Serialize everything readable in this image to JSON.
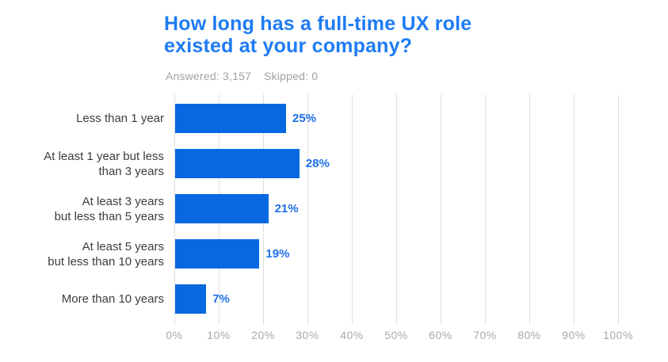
{
  "header": {
    "title_lines": [
      "How long has a full-time UX role",
      "existed at your company?"
    ],
    "answered_label": "Answered: 3,157",
    "skipped_label": "Skipped: 0"
  },
  "colors": {
    "title": "#1E7BF3",
    "bar": "#0768E1",
    "value_label": "#1E6FE8",
    "category_label": "#3D3D3D",
    "subtitle": "#9EA2A8",
    "tick_label": "#A6AAAD",
    "gridline": "#E0E0E0",
    "background": "#FFFFFF"
  },
  "chart_data": {
    "type": "bar",
    "orientation": "horizontal",
    "title": "How long has a full-time UX role existed at your company?",
    "answered": 3157,
    "skipped": 0,
    "categories": [
      "Less than 1 year",
      "At least 1 year but less than 3 years",
      "At least 3 years but less than 5 years",
      "At least 5 years but less than 10 years",
      "More than 10 years"
    ],
    "category_label_lines": [
      [
        "Less than 1 year"
      ],
      [
        "At least 1 year but less",
        "than 3 years"
      ],
      [
        "At least 3 years",
        "but less than 5 years"
      ],
      [
        "At least 5 years",
        "but less than 10 years"
      ],
      [
        "More than 10 years"
      ]
    ],
    "values": [
      25,
      28,
      21,
      19,
      7
    ],
    "value_labels": [
      "25%",
      "28%",
      "21%",
      "19%",
      "7%"
    ],
    "xlim": [
      0,
      100
    ],
    "x_ticks": [
      0,
      10,
      20,
      30,
      40,
      50,
      60,
      70,
      80,
      90,
      100
    ],
    "x_tick_labels": [
      "0%",
      "10%",
      "20%",
      "30%",
      "40%",
      "50%",
      "60%",
      "70%",
      "80%",
      "90%",
      "100%"
    ],
    "grid": "vertical",
    "legend": false
  }
}
